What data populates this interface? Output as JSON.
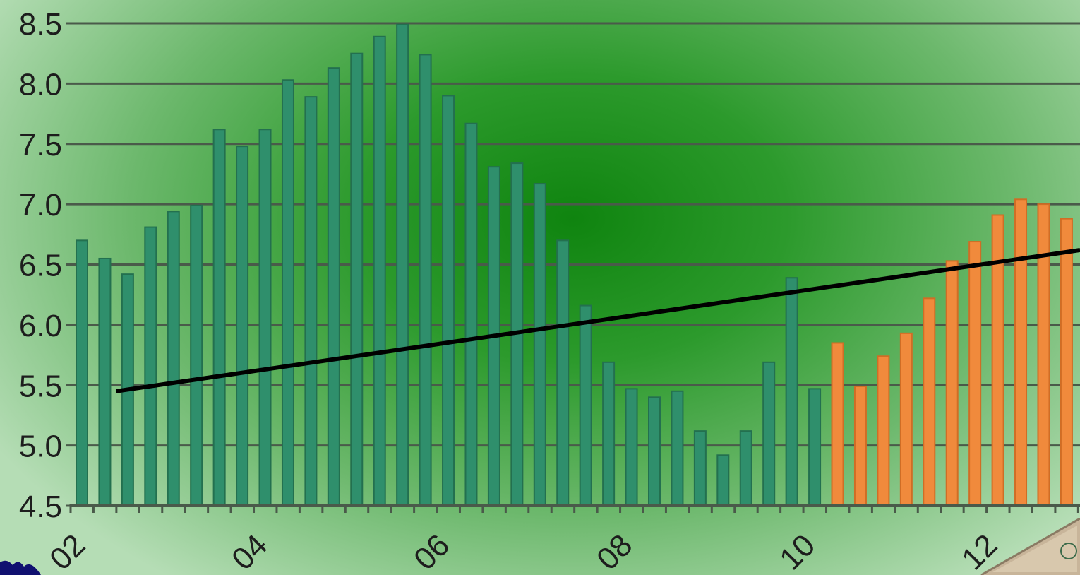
{
  "chart_data": {
    "type": "bar",
    "title": "",
    "xlabel": "",
    "ylabel": "",
    "ylim": [
      4.5,
      8.5
    ],
    "yticks": [
      "8.5",
      "8.0",
      "7.5",
      "7.0",
      "6.5",
      "6.0",
      "5.5",
      "5.0",
      "4.5"
    ],
    "x_tick_labels": [
      "02",
      "04",
      "06",
      "08",
      "10",
      "12"
    ],
    "grid": true,
    "legend": "none",
    "series": [
      {
        "color": "#2f8f6c",
        "values": [
          6.7,
          6.55,
          6.42,
          6.81,
          6.94,
          6.99,
          7.62,
          7.48,
          7.62,
          8.03,
          7.89,
          8.13,
          8.25,
          8.39,
          8.49,
          8.24,
          7.9,
          7.67,
          7.31,
          7.34,
          7.17,
          6.7,
          6.16,
          5.69,
          5.47,
          5.4,
          5.45,
          5.12,
          4.92,
          5.12,
          5.69,
          6.39,
          5.47
        ]
      },
      {
        "color": "#f08a3c",
        "values": [
          5.85,
          5.49,
          5.74,
          5.93,
          6.22,
          6.53,
          6.69,
          6.91,
          7.04,
          7.0,
          6.88
        ]
      }
    ],
    "trendline": {
      "color": "#000000",
      "from": 5.45,
      "to": 6.62
    }
  }
}
